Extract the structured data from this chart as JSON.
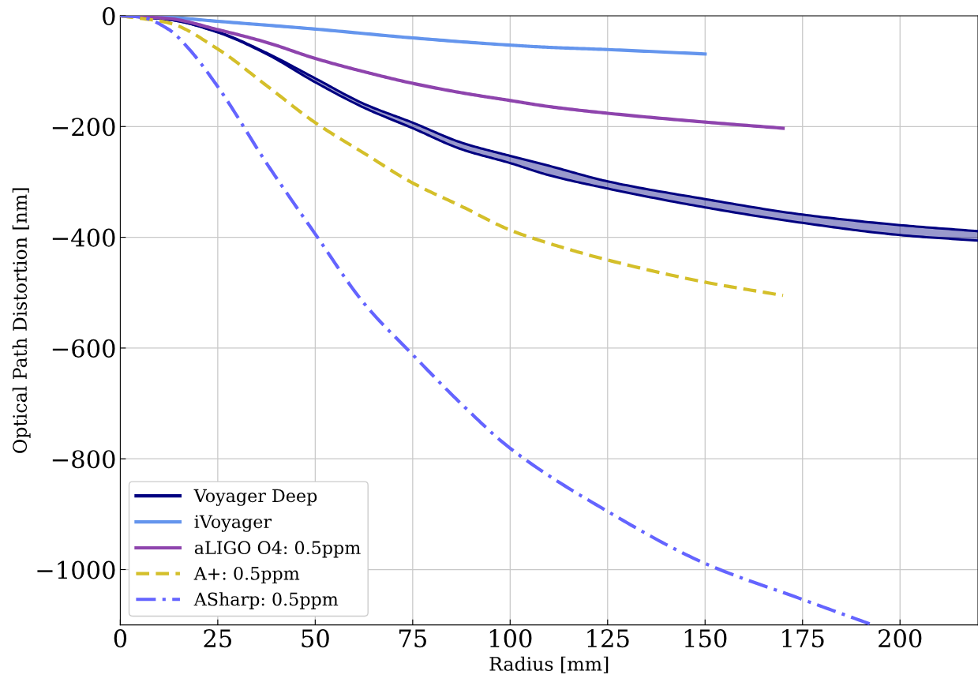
{
  "chart_data": {
    "type": "line",
    "xlabel": "Radius [mm]",
    "ylabel": "Optical Path Distortion [nm]",
    "xlim": [
      0,
      220
    ],
    "ylim": [
      -1100,
      0
    ],
    "xticks": [
      0,
      25,
      50,
      75,
      100,
      125,
      150,
      175,
      200
    ],
    "yticks": [
      -1000,
      -800,
      -600,
      -400,
      -200,
      0
    ],
    "grid": true,
    "legend": "bottom left",
    "marker": "none",
    "series": [
      {
        "name": "Voyager Deep",
        "color": "#000080",
        "line_style": "solid",
        "x": [
          0,
          12.5,
          25,
          37.5,
          50,
          62.5,
          75,
          87.5,
          100,
          110,
          125,
          150,
          175,
          200,
          220
        ],
        "values": [
          0,
          -7,
          -29,
          -67,
          -113,
          -159,
          -193,
          -229,
          -253,
          -271,
          -299,
          -331,
          -359,
          -378,
          -389
        ],
        "lower": [
          0,
          -7,
          -30,
          -69,
          -120,
          -166,
          -203,
          -241,
          -266,
          -288,
          -312,
          -346,
          -374,
          -396,
          -406
        ],
        "upper": [
          0,
          -7,
          -29,
          -67,
          -113,
          -159,
          -193,
          -229,
          -253,
          -271,
          -299,
          -331,
          -359,
          -378,
          -389
        ]
      },
      {
        "color": "#000080",
        "line_style": "solid",
        "x": [
          0,
          12.5,
          25,
          37.5,
          50,
          62.5,
          75,
          87.5,
          100,
          110,
          125,
          150,
          175,
          200,
          220
        ],
        "values": [
          0,
          -7,
          -30,
          -69,
          -120,
          -166,
          -203,
          -241,
          -266,
          -288,
          -312,
          -346,
          -374,
          -396,
          -406
        ]
      },
      {
        "name": "iVoyager",
        "color": "#6495ed",
        "line_style": "solid",
        "x": [
          0,
          12.5,
          25,
          50,
          75,
          100,
          110,
          125,
          150
        ],
        "values": [
          0,
          -3,
          -10,
          -24,
          -40,
          -53,
          -57,
          -61,
          -69
        ]
      },
      {
        "name": "aLIGO O4: 0.5ppm",
        "color": "#8e44ad",
        "line_style": "solid",
        "x": [
          0,
          12.5,
          25,
          37.5,
          50,
          62.5,
          75,
          87.5,
          100,
          110,
          125,
          150,
          170
        ],
        "values": [
          0,
          -5,
          -25,
          -48,
          -77,
          -101,
          -122,
          -139,
          -153,
          -164,
          -176,
          -192,
          -203
        ]
      },
      {
        "name": "A+: 0.5ppm",
        "color": "#d4bf2a",
        "line_style": "dashed",
        "x": [
          0,
          12.5,
          25,
          37.5,
          50,
          62.5,
          75,
          87.5,
          100,
          110,
          125,
          150,
          170
        ],
        "values": [
          0,
          -13,
          -60,
          -126,
          -193,
          -248,
          -302,
          -344,
          -387,
          -411,
          -441,
          -481,
          -505
        ]
      },
      {
        "name": "ASharp: 0.5ppm",
        "color": "#6464ff",
        "line_style": "dashdot",
        "x": [
          0,
          5,
          12.5,
          17,
          25,
          37.5,
          50,
          62.5,
          75,
          87.5,
          100,
          125,
          150,
          175,
          193
        ],
        "values": [
          0,
          -2,
          -25,
          -55,
          -128,
          -266,
          -394,
          -519,
          -612,
          -701,
          -781,
          -895,
          -989,
          -1054,
          -1100
        ]
      }
    ]
  }
}
